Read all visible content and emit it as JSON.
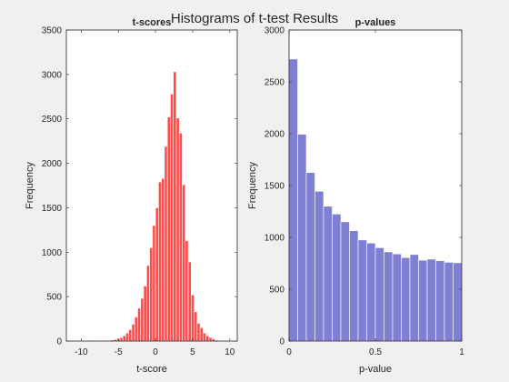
{
  "figure": {
    "title": "Histograms of t-test Results",
    "background": "#f0f0f0"
  },
  "chart_data": [
    {
      "type": "bar",
      "title": "t-scores",
      "xlabel": "t-score",
      "ylabel": "Frequency",
      "xlim": [
        -12,
        11
      ],
      "ylim": [
        0,
        3500
      ],
      "xticks": [
        -10,
        -5,
        0,
        5,
        10
      ],
      "yticks": [
        0,
        500,
        1000,
        1500,
        2000,
        2500,
        3000,
        3500
      ],
      "bin_width": 0.4,
      "color": "#ff4c4c",
      "bins": [
        {
          "x": -10.0,
          "value": 5
        },
        {
          "x": -9.6,
          "value": 2
        },
        {
          "x": -8.0,
          "value": 3
        },
        {
          "x": -7.0,
          "value": 5
        },
        {
          "x": -6.2,
          "value": 8
        },
        {
          "x": -5.8,
          "value": 12
        },
        {
          "x": -5.4,
          "value": 18
        },
        {
          "x": -5.0,
          "value": 28
        },
        {
          "x": -4.6,
          "value": 40
        },
        {
          "x": -4.2,
          "value": 60
        },
        {
          "x": -3.8,
          "value": 90
        },
        {
          "x": -3.4,
          "value": 130
        },
        {
          "x": -3.0,
          "value": 190
        },
        {
          "x": -2.6,
          "value": 270
        },
        {
          "x": -2.2,
          "value": 370
        },
        {
          "x": -1.8,
          "value": 480
        },
        {
          "x": -1.4,
          "value": 620
        },
        {
          "x": -1.0,
          "value": 850
        },
        {
          "x": -0.6,
          "value": 1050
        },
        {
          "x": -0.2,
          "value": 1300
        },
        {
          "x": 0.2,
          "value": 1500
        },
        {
          "x": 0.6,
          "value": 1790
        },
        {
          "x": 1.0,
          "value": 1830
        },
        {
          "x": 1.4,
          "value": 2190
        },
        {
          "x": 1.8,
          "value": 2520
        },
        {
          "x": 2.2,
          "value": 2780
        },
        {
          "x": 2.6,
          "value": 3030
        },
        {
          "x": 3.0,
          "value": 2510
        },
        {
          "x": 3.4,
          "value": 2340
        },
        {
          "x": 3.8,
          "value": 1760
        },
        {
          "x": 4.2,
          "value": 1130
        },
        {
          "x": 4.6,
          "value": 890
        },
        {
          "x": 5.0,
          "value": 520
        },
        {
          "x": 5.4,
          "value": 330
        },
        {
          "x": 5.8,
          "value": 200
        },
        {
          "x": 6.2,
          "value": 150
        },
        {
          "x": 6.6,
          "value": 90
        },
        {
          "x": 7.0,
          "value": 60
        },
        {
          "x": 7.4,
          "value": 40
        },
        {
          "x": 7.8,
          "value": 25
        },
        {
          "x": 8.2,
          "value": 12
        },
        {
          "x": 8.6,
          "value": 8
        },
        {
          "x": 9.0,
          "value": 5
        }
      ]
    },
    {
      "type": "bar",
      "title": "p-values",
      "xlabel": "p-value",
      "ylabel": "Frequency",
      "xlim": [
        0,
        1
      ],
      "ylim": [
        0,
        3000
      ],
      "xticks": [
        0,
        0.5,
        1
      ],
      "yticks": [
        0,
        500,
        1000,
        1500,
        2000,
        2500,
        3000
      ],
      "bin_width": 0.05,
      "color": "#7f7fd4",
      "bins": [
        {
          "x": 0.025,
          "value": 2720
        },
        {
          "x": 0.075,
          "value": 1995
        },
        {
          "x": 0.125,
          "value": 1625
        },
        {
          "x": 0.175,
          "value": 1445
        },
        {
          "x": 0.225,
          "value": 1300
        },
        {
          "x": 0.275,
          "value": 1225
        },
        {
          "x": 0.325,
          "value": 1150
        },
        {
          "x": 0.375,
          "value": 1065
        },
        {
          "x": 0.425,
          "value": 975
        },
        {
          "x": 0.475,
          "value": 945
        },
        {
          "x": 0.525,
          "value": 900
        },
        {
          "x": 0.575,
          "value": 860
        },
        {
          "x": 0.625,
          "value": 840
        },
        {
          "x": 0.675,
          "value": 805
        },
        {
          "x": 0.725,
          "value": 835
        },
        {
          "x": 0.775,
          "value": 780
        },
        {
          "x": 0.825,
          "value": 790
        },
        {
          "x": 0.875,
          "value": 775
        },
        {
          "x": 0.925,
          "value": 760
        },
        {
          "x": 0.975,
          "value": 755
        }
      ]
    }
  ]
}
